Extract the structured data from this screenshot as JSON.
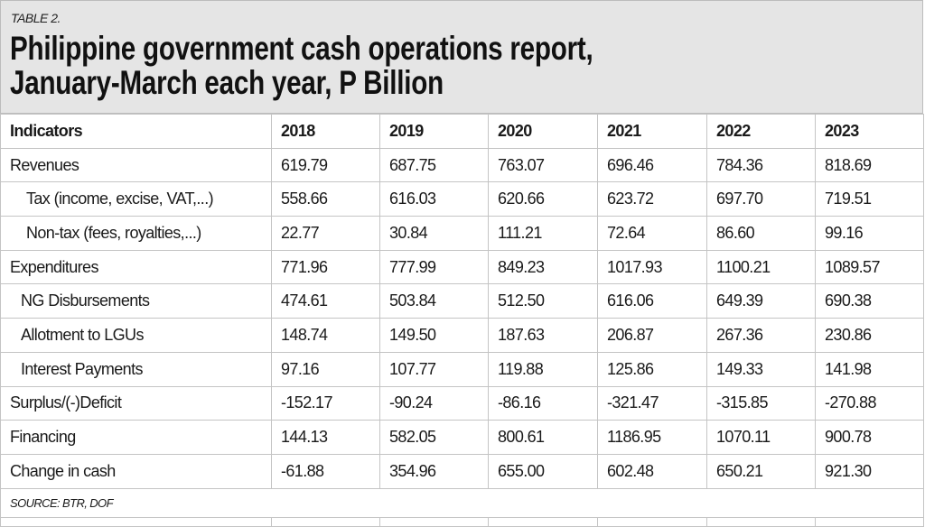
{
  "header": {
    "label": "TABLE 2.",
    "title_line1": "Philippine government cash operations report,",
    "title_line2": "January-March each year, P Billion"
  },
  "table": {
    "columns": [
      "Indicators",
      "2018",
      "2019",
      "2020",
      "2021",
      "2022",
      "2023"
    ],
    "rows": [
      {
        "label": "Revenues",
        "indent": 0,
        "values": [
          "619.79",
          "687.75",
          "763.07",
          "696.46",
          "784.36",
          "818.69"
        ]
      },
      {
        "label": "Tax (income, excise, VAT,...)",
        "indent": 1,
        "values": [
          "558.66",
          "616.03",
          "620.66",
          "623.72",
          "697.70",
          "719.51"
        ]
      },
      {
        "label": "Non-tax (fees, royalties,...)",
        "indent": 1,
        "values": [
          "22.77",
          "30.84",
          "111.21",
          "72.64",
          "86.60",
          "99.16"
        ]
      },
      {
        "label": "Expenditures",
        "indent": 0,
        "values": [
          "771.96",
          "777.99",
          "849.23",
          "1017.93",
          "1100.21",
          "1089.57"
        ]
      },
      {
        "label": "NG Disbursements",
        "indent": 2,
        "values": [
          "474.61",
          "503.84",
          "512.50",
          "616.06",
          "649.39",
          "690.38"
        ]
      },
      {
        "label": "Allotment to LGUs",
        "indent": 2,
        "values": [
          "148.74",
          "149.50",
          "187.63",
          "206.87",
          "267.36",
          "230.86"
        ]
      },
      {
        "label": "Interest Payments",
        "indent": 2,
        "values": [
          "97.16",
          "107.77",
          "119.88",
          "125.86",
          "149.33",
          "141.98"
        ]
      },
      {
        "label": "Surplus/(-)Deficit",
        "indent": 0,
        "values": [
          "-152.17",
          "-90.24",
          "-86.16",
          "-321.47",
          "-315.85",
          "-270.88"
        ]
      },
      {
        "label": "Financing",
        "indent": 0,
        "values": [
          "144.13",
          "582.05",
          "800.61",
          "1186.95",
          "1070.11",
          "900.78"
        ]
      },
      {
        "label": "Change in cash",
        "indent": 0,
        "values": [
          "-61.88",
          "354.96",
          "655.00",
          "602.48",
          "650.21",
          "921.30"
        ]
      }
    ],
    "source": "SOURCE: BTR, DOF"
  },
  "colors": {
    "header_bg": "#e5e5e5",
    "grid": "#c4c4c4",
    "text": "#1a1a1a"
  }
}
